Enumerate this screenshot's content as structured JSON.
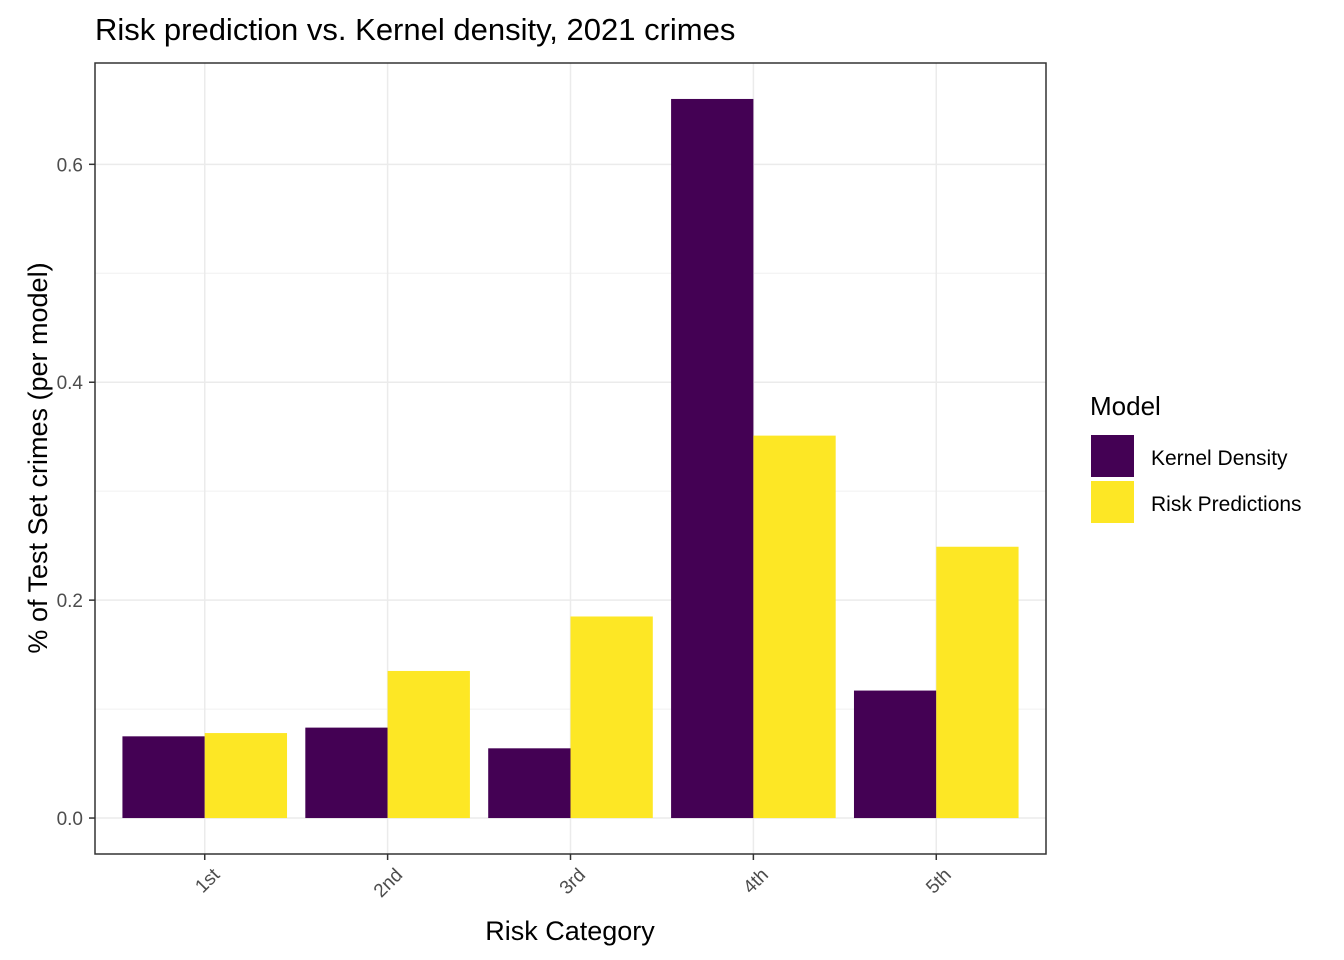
{
  "chart_data": {
    "type": "bar",
    "title": "Risk prediction vs. Kernel density, 2021 crimes",
    "xlabel": "Risk Category",
    "ylabel": "% of Test Set crimes (per model)",
    "categories": [
      "1st",
      "2nd",
      "3rd",
      "4th",
      "5th"
    ],
    "series": [
      {
        "name": "Kernel Density",
        "color": "#440154",
        "values": [
          0.075,
          0.083,
          0.064,
          0.66,
          0.117
        ]
      },
      {
        "name": "Risk Predictions",
        "color": "#FDE725",
        "values": [
          0.078,
          0.135,
          0.185,
          0.351,
          0.249
        ]
      }
    ],
    "yticks": [
      0.0,
      0.2,
      0.4,
      0.6
    ],
    "ytick_labels": [
      "0.0",
      "0.2",
      "0.4",
      "0.6"
    ],
    "ylim": [
      -0.033,
      0.693
    ],
    "grid": true,
    "legend": {
      "title": "Model",
      "position": "right"
    }
  }
}
